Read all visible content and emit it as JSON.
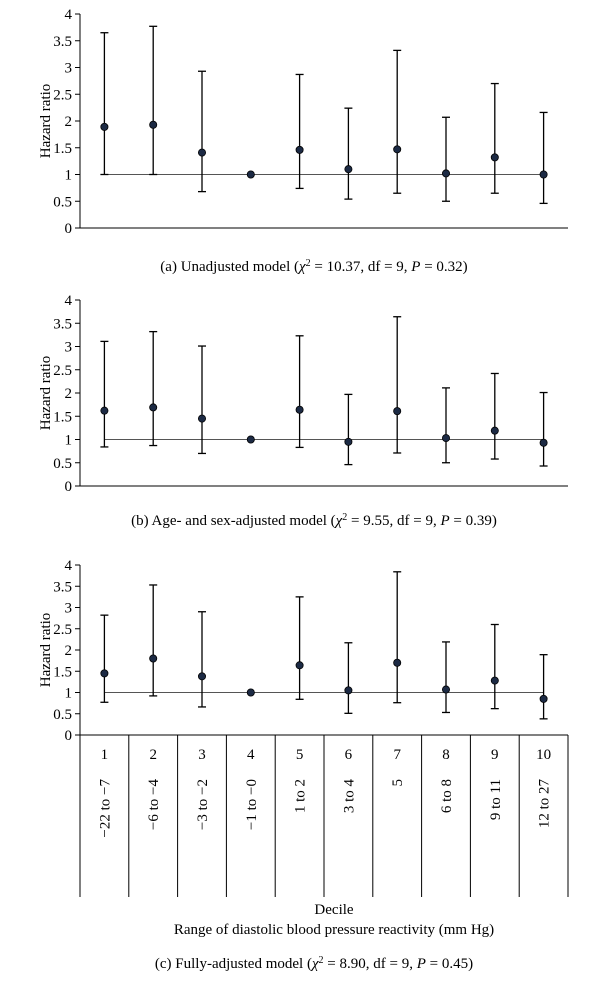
{
  "chart_data": [
    {
      "type": "scatter",
      "subtype": "point-with-error-bars",
      "caption": {
        "prefix": "(a)  Unadjusted model (",
        "chi": "χ",
        "stat": " = 10.37, df = 9, ",
        "p": "P",
        "pval": " = 0.32)"
      },
      "ylabel": "Hazard ratio",
      "ylim": [
        0,
        4
      ],
      "yticks": [
        "0",
        "0.5",
        "1",
        "1.5",
        "2",
        "2.5",
        "3",
        "3.5",
        "4"
      ],
      "reference_line": 1,
      "grid": false,
      "points": [
        {
          "x": 1,
          "y": 1.89,
          "low": 1.0,
          "high": 3.65
        },
        {
          "x": 2,
          "y": 1.93,
          "low": 1.0,
          "high": 3.77
        },
        {
          "x": 3,
          "y": 1.41,
          "low": 0.68,
          "high": 2.93
        },
        {
          "x": 4,
          "y": 1.0,
          "low": 1.0,
          "high": 1.0
        },
        {
          "x": 5,
          "y": 1.46,
          "low": 0.74,
          "high": 2.87
        },
        {
          "x": 6,
          "y": 1.1,
          "low": 0.54,
          "high": 2.24
        },
        {
          "x": 7,
          "y": 1.47,
          "low": 0.65,
          "high": 3.32
        },
        {
          "x": 8,
          "y": 1.02,
          "low": 0.5,
          "high": 2.07
        },
        {
          "x": 9,
          "y": 1.32,
          "low": 0.65,
          "high": 2.7
        },
        {
          "x": 10,
          "y": 1.0,
          "low": 0.46,
          "high": 2.16
        }
      ]
    },
    {
      "type": "scatter",
      "subtype": "point-with-error-bars",
      "caption": {
        "prefix": "(b)  Age- and sex-adjusted model (",
        "chi": "χ",
        "stat": " = 9.55, df = 9, ",
        "p": "P",
        "pval": " = 0.39)"
      },
      "ylabel": "Hazard ratio",
      "ylim": [
        0,
        4
      ],
      "yticks": [
        "0",
        "0.5",
        "1",
        "1.5",
        "2",
        "2.5",
        "3",
        "3.5",
        "4"
      ],
      "reference_line": 1,
      "grid": false,
      "points": [
        {
          "x": 1,
          "y": 1.62,
          "low": 0.84,
          "high": 3.11
        },
        {
          "x": 2,
          "y": 1.69,
          "low": 0.87,
          "high": 3.32
        },
        {
          "x": 3,
          "y": 1.45,
          "low": 0.7,
          "high": 3.01
        },
        {
          "x": 4,
          "y": 1.0,
          "low": 1.0,
          "high": 1.0
        },
        {
          "x": 5,
          "y": 1.64,
          "low": 0.83,
          "high": 3.23
        },
        {
          "x": 6,
          "y": 0.95,
          "low": 0.46,
          "high": 1.97
        },
        {
          "x": 7,
          "y": 1.61,
          "low": 0.71,
          "high": 3.64
        },
        {
          "x": 8,
          "y": 1.03,
          "low": 0.5,
          "high": 2.11
        },
        {
          "x": 9,
          "y": 1.19,
          "low": 0.58,
          "high": 2.42
        },
        {
          "x": 10,
          "y": 0.93,
          "low": 0.43,
          "high": 2.01
        }
      ]
    },
    {
      "type": "scatter",
      "subtype": "point-with-error-bars",
      "caption": {
        "prefix": "(c)  Fully-adjusted model (",
        "chi": "χ",
        "stat": " = 8.90, df = 9, ",
        "p": "P",
        "pval": " = 0.45)"
      },
      "ylabel": "Hazard ratio",
      "ylim": [
        0,
        4
      ],
      "yticks": [
        "0",
        "0.5",
        "1",
        "1.5",
        "2",
        "2.5",
        "3",
        "3.5",
        "4"
      ],
      "reference_line": 1,
      "grid": false,
      "xlabel": "Decile",
      "xlabel2": "Range of diastolic blood pressure reactivity (mm Hg)",
      "deciles": [
        "1",
        "2",
        "3",
        "4",
        "5",
        "6",
        "7",
        "8",
        "9",
        "10"
      ],
      "ranges": [
        "−22 to −7",
        "−6 to −4",
        "−3 to −2",
        "−1 to −0",
        "1 to 2",
        "3 to 4",
        "5",
        "6 to 8",
        "9 to 11",
        "12 to 27"
      ],
      "points": [
        {
          "x": 1,
          "y": 1.45,
          "low": 0.77,
          "high": 2.82
        },
        {
          "x": 2,
          "y": 1.8,
          "low": 0.92,
          "high": 3.53
        },
        {
          "x": 3,
          "y": 1.38,
          "low": 0.66,
          "high": 2.9
        },
        {
          "x": 4,
          "y": 1.0,
          "low": 1.0,
          "high": 1.0
        },
        {
          "x": 5,
          "y": 1.64,
          "low": 0.84,
          "high": 3.25
        },
        {
          "x": 6,
          "y": 1.05,
          "low": 0.51,
          "high": 2.17
        },
        {
          "x": 7,
          "y": 1.7,
          "low": 0.76,
          "high": 3.84
        },
        {
          "x": 8,
          "y": 1.07,
          "low": 0.53,
          "high": 2.19
        },
        {
          "x": 9,
          "y": 1.28,
          "low": 0.62,
          "high": 2.6
        },
        {
          "x": 10,
          "y": 0.85,
          "low": 0.38,
          "high": 1.89
        }
      ]
    }
  ]
}
